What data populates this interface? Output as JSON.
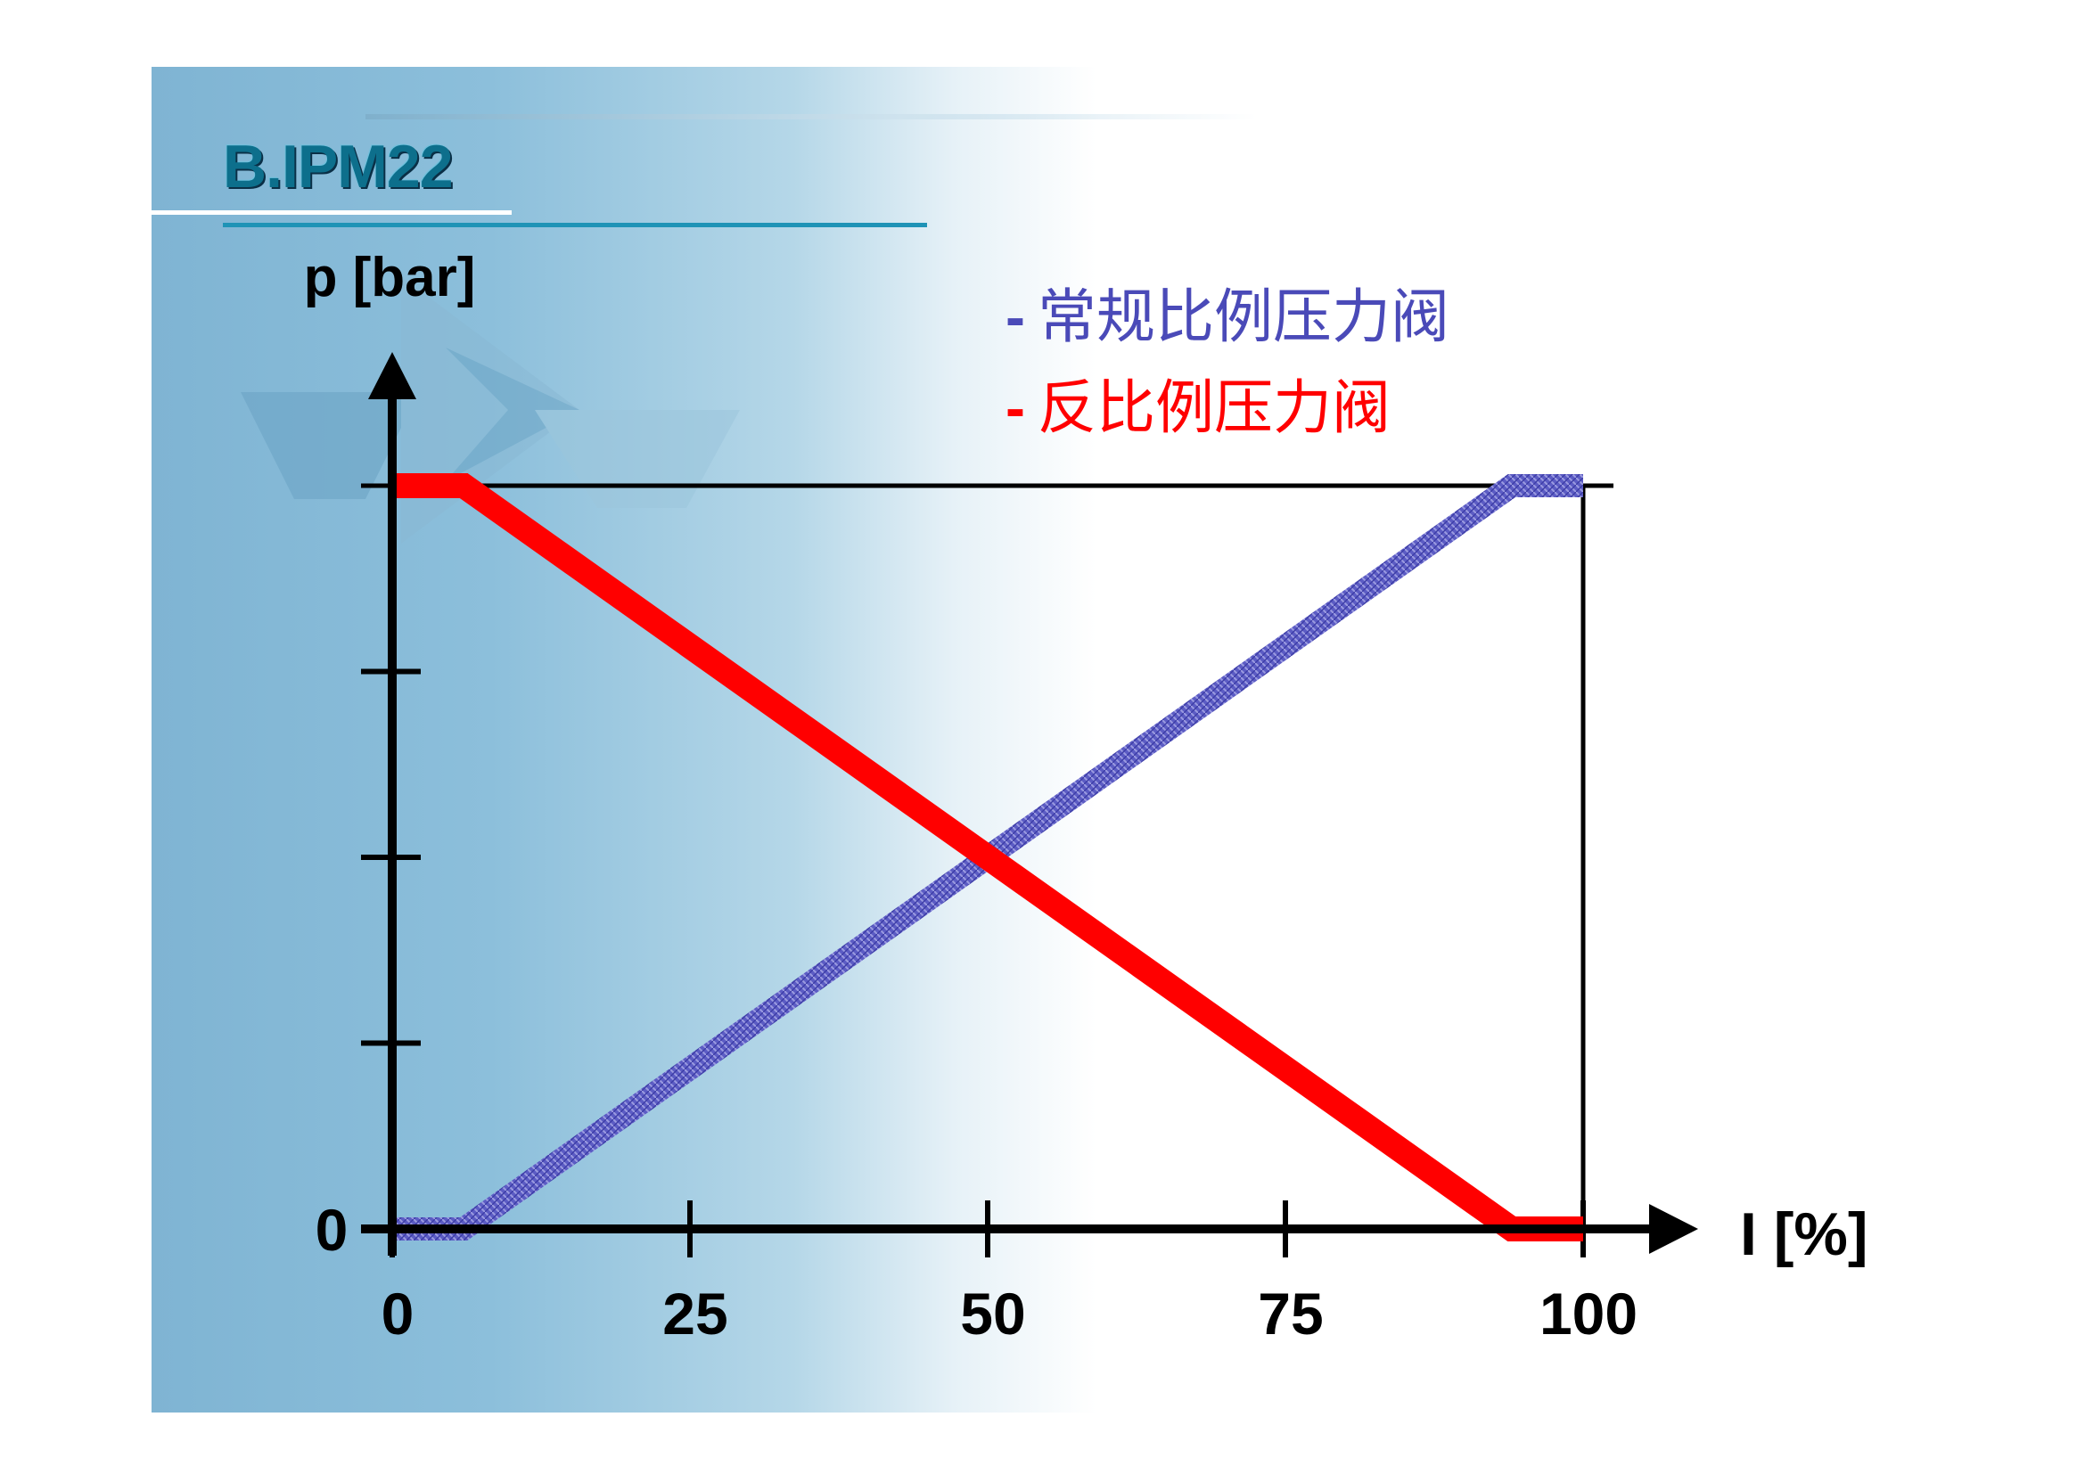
{
  "slide": {
    "title": "B.IPM22"
  },
  "colors": {
    "normal_valve": "#4a4ab8",
    "inverse_valve": "#ff0000",
    "axis": "#000000",
    "title": "#0d6f8c"
  },
  "chart_data": {
    "type": "line",
    "ylabel": "p [bar]",
    "xlabel": "I [%]",
    "x_ticks": [
      "0",
      "25",
      "50",
      "75",
      "100"
    ],
    "y_ticks": [
      "0"
    ],
    "xlim": [
      0,
      100
    ],
    "ylim": [
      0,
      1
    ],
    "grid": false,
    "legend_position": "top-right",
    "series": [
      {
        "name": "常规比例压力阀",
        "color": "#4a4ab8",
        "x": [
          0,
          6,
          94,
          100
        ],
        "y": [
          0,
          0,
          1,
          1
        ]
      },
      {
        "name": "反比例压力阀",
        "color": "#ff0000",
        "x": [
          0,
          6,
          94,
          100
        ],
        "y": [
          1,
          1,
          0,
          0
        ]
      }
    ]
  },
  "legend": {
    "dash": "-",
    "normal_label": "常规比例压力阀",
    "inverse_label": "反比例压力阀"
  }
}
